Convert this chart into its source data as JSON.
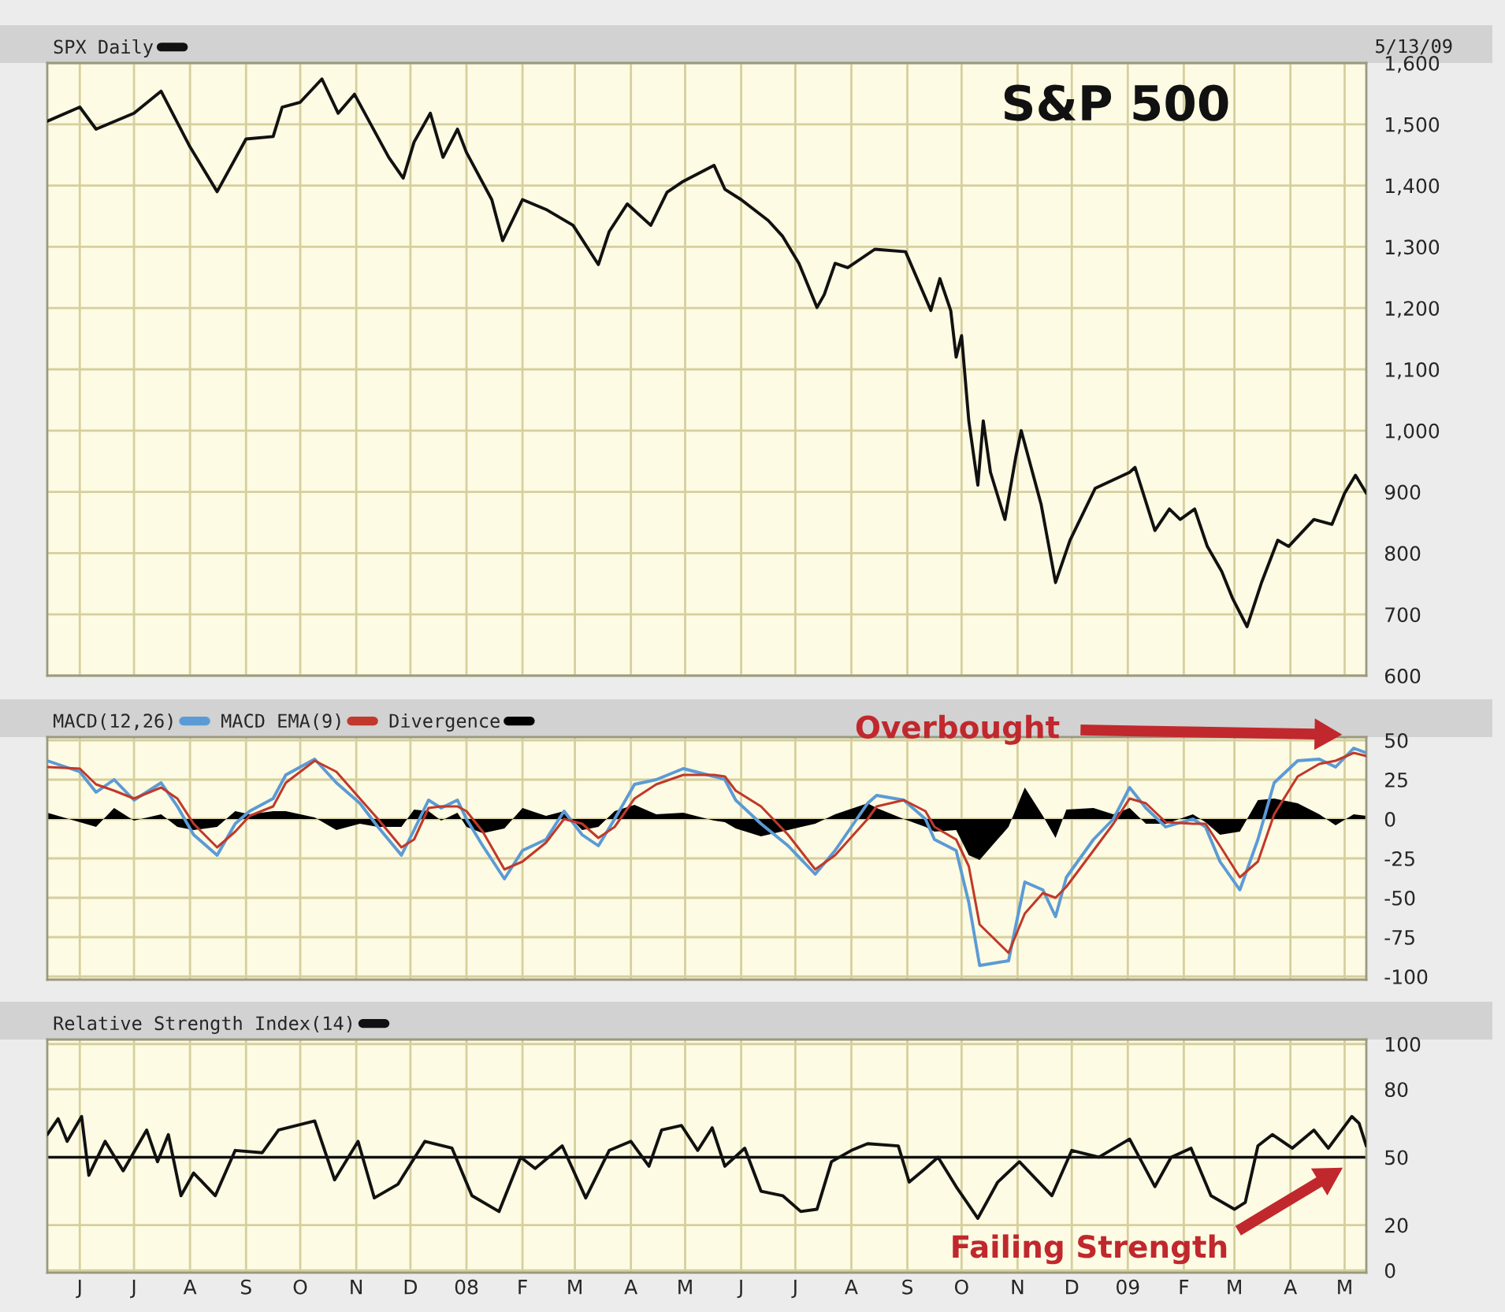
{
  "chart_data": [
    {
      "type": "line",
      "title": "S&P 500",
      "subtitle": "5/13/09",
      "x": [
        "2007-05-14",
        "2007-06-01",
        "2007-06-10",
        "2007-07-01",
        "2007-07-16",
        "2007-08-01",
        "2007-08-16",
        "2007-09-01",
        "2007-09-16",
        "2007-09-21",
        "2007-10-01",
        "2007-10-13",
        "2007-10-22",
        "2007-10-31",
        "2007-11-19",
        "2007-11-27",
        "2007-12-03",
        "2007-12-12",
        "2007-12-19",
        "2007-12-27",
        "2008-01-01",
        "2008-01-15",
        "2008-01-21",
        "2008-02-01",
        "2008-02-14",
        "2008-02-29",
        "2008-03-14",
        "2008-03-20",
        "2008-03-30",
        "2008-04-12",
        "2008-04-21",
        "2008-04-30",
        "2008-05-17",
        "2008-05-23",
        "2008-06-01",
        "2008-06-16",
        "2008-06-24",
        "2008-07-03",
        "2008-07-13",
        "2008-07-17",
        "2008-07-23",
        "2008-07-30",
        "2008-08-14",
        "2008-08-31",
        "2008-09-14",
        "2008-09-19",
        "2008-09-25",
        "2008-09-28",
        "2008-10-01",
        "2008-10-05",
        "2008-10-10",
        "2008-10-13",
        "2008-10-17",
        "2008-10-25",
        "2008-10-31",
        "2008-11-03",
        "2008-11-14",
        "2008-11-22",
        "2008-11-30",
        "2008-12-14",
        "2009-01-02",
        "2009-01-05",
        "2009-01-16",
        "2009-01-24",
        "2009-01-30",
        "2009-02-07",
        "2009-02-14",
        "2009-02-22",
        "2009-02-28",
        "2009-03-08",
        "2009-03-16",
        "2009-03-25",
        "2009-03-31",
        "2009-04-14",
        "2009-04-24",
        "2009-05-01",
        "2009-05-07",
        "2009-05-13"
      ],
      "series": [
        {
          "name": "SPX Daily",
          "color": "#111111",
          "values": [
            1505,
            1528,
            1492,
            1518,
            1554,
            1463,
            1390,
            1476,
            1480,
            1528,
            1536,
            1574,
            1518,
            1549,
            1446,
            1412,
            1471,
            1518,
            1446,
            1492,
            1454,
            1377,
            1310,
            1377,
            1361,
            1335,
            1271,
            1325,
            1370,
            1335,
            1389,
            1407,
            1433,
            1394,
            1377,
            1343,
            1317,
            1273,
            1201,
            1222,
            1273,
            1266,
            1296,
            1292,
            1196,
            1248,
            1196,
            1120,
            1155,
            1016,
            911,
            1016,
            932,
            855,
            957,
            1000,
            880,
            752,
            821,
            906,
            932,
            940,
            837,
            872,
            855,
            872,
            811,
            770,
            726,
            680,
            752,
            821,
            811,
            855,
            847,
            898,
            927,
            898
          ]
        }
      ],
      "xlim": [
        "2007-05-14",
        "2009-05-13"
      ],
      "xticks": [
        "2007-06-01",
        "2007-07-01",
        "2007-08-01",
        "2007-09-01",
        "2007-10-01",
        "2007-11-01",
        "2007-12-01",
        "2008-01-01",
        "2008-02-01",
        "2008-03-01",
        "2008-04-01",
        "2008-05-01",
        "2008-06-01",
        "2008-07-01",
        "2008-08-01",
        "2008-09-01",
        "2008-10-01",
        "2008-11-01",
        "2008-12-01",
        "2009-01-01",
        "2009-02-01",
        "2009-03-01",
        "2009-04-01",
        "2009-05-01"
      ],
      "ylim": [
        600,
        1600
      ],
      "yticks": [
        600,
        700,
        800,
        900,
        {
          "value": 1000,
          "label": "1,000"
        },
        {
          "value": 1100,
          "label": "1,100"
        },
        {
          "value": 1200,
          "label": "1,200"
        },
        {
          "value": 1300,
          "label": "1,300"
        },
        {
          "value": 1400,
          "label": "1,400"
        },
        {
          "value": 1500,
          "label": "1,500"
        },
        {
          "value": 1600,
          "label": "1,600"
        }
      ],
      "grid": true,
      "legend": "top left",
      "tick_labels": "y"
    },
    {
      "type": "line",
      "annotations": [
        "Overbought"
      ],
      "x": [
        "2007-05-14",
        "2007-06-01",
        "2007-06-10",
        "2007-06-20",
        "2007-07-01",
        "2007-07-16",
        "2007-07-25",
        "2007-08-03",
        "2007-08-16",
        "2007-08-26",
        "2007-09-03",
        "2007-09-16",
        "2007-09-23",
        "2007-10-09",
        "2007-10-21",
        "2007-11-03",
        "2007-11-13",
        "2007-11-26",
        "2007-12-03",
        "2007-12-11",
        "2007-12-18",
        "2007-12-27",
        "2008-01-01",
        "2008-01-10",
        "2008-01-22",
        "2008-02-01",
        "2008-02-14",
        "2008-02-24",
        "2008-03-05",
        "2008-03-14",
        "2008-03-23",
        "2008-04-03",
        "2008-04-15",
        "2008-04-30",
        "2008-05-17",
        "2008-05-23",
        "2008-05-29",
        "2008-06-12",
        "2008-06-27",
        "2008-07-12",
        "2008-07-23",
        "2008-08-10",
        "2008-08-15",
        "2008-08-30",
        "2008-09-11",
        "2008-09-16",
        "2008-09-28",
        "2008-10-05",
        "2008-10-11",
        "2008-10-27",
        "2008-11-05",
        "2008-11-15",
        "2008-11-22",
        "2008-11-28",
        "2008-12-13",
        "2008-12-24",
        "2009-01-02",
        "2009-01-11",
        "2009-01-22",
        "2009-02-06",
        "2009-02-13",
        "2009-02-21",
        "2009-03-04",
        "2009-03-14",
        "2009-03-23",
        "2009-04-05",
        "2009-04-17",
        "2009-04-26",
        "2009-05-06",
        "2009-05-13"
      ],
      "series": [
        {
          "name": "MACD(12,26)",
          "color": "#5b9bd5",
          "values": [
            37,
            30,
            17,
            25,
            12,
            23,
            8,
            -10,
            -23,
            -3,
            5,
            13,
            28,
            38,
            23,
            10,
            -5,
            -23,
            -7,
            12,
            7,
            12,
            0,
            -17,
            -38,
            -20,
            -13,
            5,
            -10,
            -17,
            0,
            22,
            25,
            32,
            27,
            25,
            12,
            -3,
            -17,
            -35,
            -20,
            10,
            15,
            12,
            0,
            -13,
            -20,
            -53,
            -93,
            -90,
            -40,
            -45,
            -62,
            -37,
            -13,
            0,
            20,
            7,
            -5,
            0,
            -5,
            -27,
            -45,
            -13,
            23,
            37,
            38,
            33,
            45,
            42
          ]
        },
        {
          "name": "MACD EMA(9)",
          "color": "#c0392b",
          "values": [
            33,
            32,
            22,
            18,
            13,
            20,
            13,
            -3,
            -18,
            -8,
            2,
            8,
            23,
            37,
            30,
            13,
            0,
            -18,
            -13,
            7,
            8,
            8,
            5,
            -8,
            -32,
            -27,
            -15,
            0,
            -3,
            -12,
            -5,
            13,
            22,
            28,
            28,
            27,
            18,
            8,
            -10,
            -32,
            -23,
            0,
            8,
            12,
            5,
            -5,
            -13,
            -30,
            -67,
            -85,
            -60,
            -47,
            -50,
            -43,
            -20,
            -3,
            13,
            10,
            -2,
            -3,
            -3,
            -17,
            -37,
            -27,
            3,
            27,
            35,
            37,
            42,
            40
          ]
        },
        {
          "name": "Divergence",
          "type": "area",
          "color": "#000000",
          "values": [
            4,
            -2,
            -5,
            7,
            -1,
            3,
            -5,
            -7,
            -5,
            5,
            3,
            5,
            5,
            1,
            -7,
            -3,
            -5,
            -5,
            6,
            5,
            -1,
            4,
            -5,
            -9,
            -6,
            7,
            2,
            5,
            -7,
            -5,
            5,
            9,
            3,
            4,
            -1,
            -2,
            -6,
            -11,
            -7,
            -3,
            3,
            10,
            7,
            0,
            -5,
            -8,
            -7,
            -23,
            -26,
            -5,
            20,
            2,
            -12,
            6,
            7,
            3,
            7,
            -3,
            -3,
            3,
            -2,
            -10,
            -8,
            12,
            13,
            10,
            3,
            -4,
            3,
            2
          ]
        }
      ],
      "xlim": [
        "2007-05-14",
        "2009-05-13"
      ],
      "xticks": [
        "2007-06-01",
        "2007-07-01",
        "2007-08-01",
        "2007-09-01",
        "2007-10-01",
        "2007-11-01",
        "2007-12-01",
        "2008-01-01",
        "2008-02-01",
        "2008-03-01",
        "2008-04-01",
        "2008-05-01",
        "2008-06-01",
        "2008-07-01",
        "2008-08-01",
        "2008-09-01",
        "2008-10-01",
        "2008-11-01",
        "2008-12-01",
        "2009-01-01",
        "2009-02-01",
        "2009-03-01",
        "2009-04-01",
        "2009-05-01"
      ],
      "ylim": [
        -102,
        52
      ],
      "yticks": [
        -100,
        -75,
        -50,
        -25,
        0,
        25,
        50
      ],
      "grid": true,
      "legend": "top left",
      "tick_labels": "y"
    },
    {
      "type": "line",
      "annotations": [
        "Failing Strength"
      ],
      "x": [
        "2007-05-14",
        "2007-05-20",
        "2007-05-25",
        "2007-06-02",
        "2007-06-06",
        "2007-06-15",
        "2007-06-25",
        "2007-07-08",
        "2007-07-14",
        "2007-07-20",
        "2007-07-27",
        "2007-08-03",
        "2007-08-15",
        "2007-08-26",
        "2007-09-10",
        "2007-09-19",
        "2007-10-09",
        "2007-10-20",
        "2007-11-02",
        "2007-11-11",
        "2007-11-24",
        "2007-12-09",
        "2007-12-24",
        "2008-01-04",
        "2008-01-19",
        "2008-01-31",
        "2008-02-08",
        "2008-02-23",
        "2008-03-07",
        "2008-03-20",
        "2008-04-01",
        "2008-04-11",
        "2008-04-18",
        "2008-04-29",
        "2008-05-08",
        "2008-05-16",
        "2008-05-23",
        "2008-06-03",
        "2008-06-12",
        "2008-06-24",
        "2008-07-04",
        "2008-07-13",
        "2008-07-21",
        "2008-08-01",
        "2008-08-10",
        "2008-08-27",
        "2008-09-02",
        "2008-09-11",
        "2008-09-18",
        "2008-09-28",
        "2008-10-10",
        "2008-10-21",
        "2008-11-02",
        "2008-11-20",
        "2008-12-01",
        "2008-12-16",
        "2009-01-02",
        "2009-01-16",
        "2009-01-25",
        "2009-02-05",
        "2009-02-16",
        "2009-03-01",
        "2009-03-07",
        "2009-03-14",
        "2009-03-22",
        "2009-04-02",
        "2009-04-14",
        "2009-04-22",
        "2009-05-05",
        "2009-05-09",
        "2009-05-13"
      ],
      "series": [
        {
          "name": "Relative Strength Index(14)",
          "color": "#111111",
          "values": [
            60,
            67,
            57,
            68,
            42,
            57,
            44,
            62,
            48,
            60,
            33,
            43,
            33,
            53,
            52,
            62,
            66,
            40,
            57,
            32,
            38,
            57,
            54,
            33,
            26,
            50,
            45,
            55,
            32,
            53,
            57,
            46,
            62,
            64,
            53,
            63,
            46,
            54,
            35,
            33,
            26,
            27,
            48,
            53,
            56,
            55,
            39,
            45,
            50,
            37,
            23,
            39,
            48,
            33,
            53,
            50,
            58,
            37,
            50,
            54,
            33,
            27,
            30,
            55,
            60,
            54,
            62,
            54,
            68,
            65,
            55
          ]
        }
      ],
      "ref_lines": [
        {
          "axis": "y",
          "value": 50,
          "color": "#111111"
        }
      ],
      "xlim": [
        "2007-05-14",
        "2009-05-13"
      ],
      "xticks": [
        {
          "value": "2007-06-01",
          "label": "J"
        },
        {
          "value": "2007-07-01",
          "label": "J"
        },
        {
          "value": "2007-08-01",
          "label": "A"
        },
        {
          "value": "2007-09-01",
          "label": "S"
        },
        {
          "value": "2007-10-01",
          "label": "O"
        },
        {
          "value": "2007-11-01",
          "label": "N"
        },
        {
          "value": "2007-12-01",
          "label": "D"
        },
        {
          "value": "2008-01-01",
          "label": "08"
        },
        {
          "value": "2008-02-01",
          "label": "F"
        },
        {
          "value": "2008-03-01",
          "label": "M"
        },
        {
          "value": "2008-04-01",
          "label": "A"
        },
        {
          "value": "2008-05-01",
          "label": "M"
        },
        {
          "value": "2008-06-01",
          "label": "J"
        },
        {
          "value": "2008-07-01",
          "label": "J"
        },
        {
          "value": "2008-08-01",
          "label": "A"
        },
        {
          "value": "2008-09-01",
          "label": "S"
        },
        {
          "value": "2008-10-01",
          "label": "O"
        },
        {
          "value": "2008-11-01",
          "label": "N"
        },
        {
          "value": "2008-12-01",
          "label": "D"
        },
        {
          "value": "2009-01-01",
          "label": "09"
        },
        {
          "value": "2009-02-01",
          "label": "F"
        },
        {
          "value": "2009-03-01",
          "label": "M"
        },
        {
          "value": "2009-04-01",
          "label": "A"
        },
        {
          "value": "2009-05-01",
          "label": "M"
        }
      ],
      "ylim": [
        -1,
        102
      ],
      "yticks": [
        0,
        20,
        50,
        80,
        100
      ],
      "grid": true,
      "legend": "top left"
    }
  ]
}
